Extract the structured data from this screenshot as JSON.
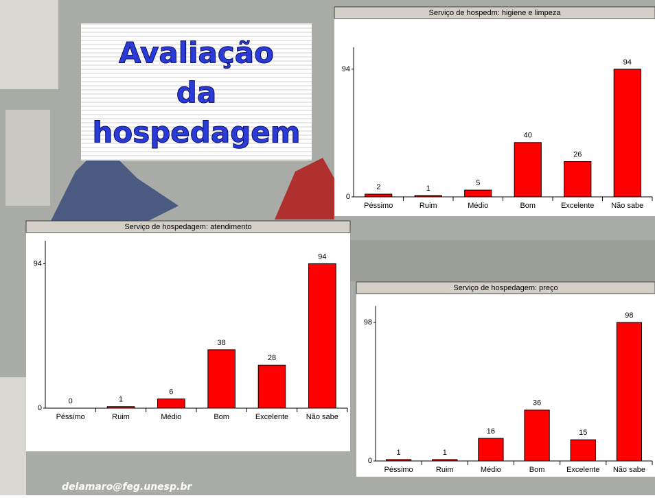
{
  "slide": {
    "title_lines": [
      "Avaliação",
      "da",
      "hospedagem"
    ],
    "footer": "delamaro@feg.unesp.br"
  },
  "chart_data": [
    {
      "type": "bar",
      "title": "Serviço de hospedm: higiene e limpeza",
      "categories": [
        "Péssimo",
        "Ruim",
        "Médio",
        "Bom",
        "Excelente",
        "Não sabe"
      ],
      "values": [
        2,
        1,
        5,
        40,
        26,
        94
      ],
      "color": "#ff0000",
      "ylim": [
        0,
        100
      ],
      "yticks": [
        0,
        94
      ]
    },
    {
      "type": "bar",
      "title": "Serviço de hospedagem: atendimento",
      "categories": [
        "Péssimo",
        "Ruim",
        "Médio",
        "Bom",
        "Excelente",
        "Não sabe"
      ],
      "values": [
        0,
        1,
        6,
        38,
        28,
        94
      ],
      "color": "#ff0000",
      "ylim": [
        0,
        100
      ],
      "yticks": [
        0,
        94
      ]
    },
    {
      "type": "bar",
      "title": "Serviço de hospedagem: preço",
      "categories": [
        "Péssimo",
        "Ruim",
        "Médio",
        "Bom",
        "Excelente",
        "Não sabe"
      ],
      "values": [
        1,
        1,
        16,
        36,
        15,
        98
      ],
      "color": "#ff0000",
      "ylim": [
        0,
        100
      ],
      "yticks": [
        0,
        98
      ]
    }
  ]
}
